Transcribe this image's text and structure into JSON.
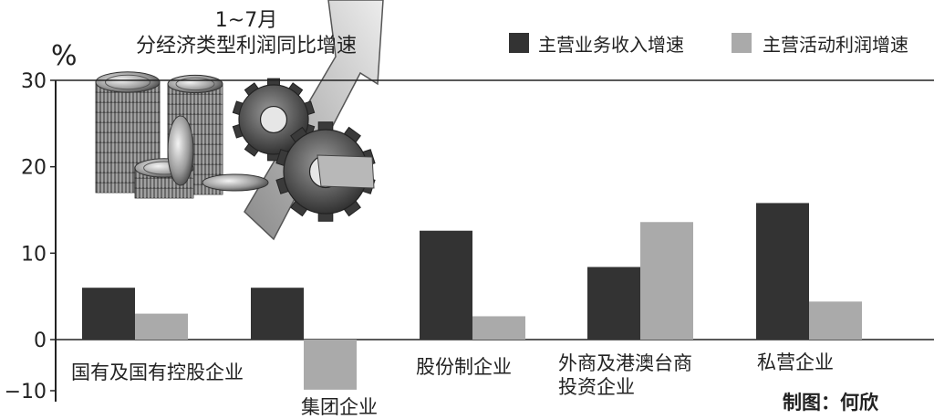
{
  "chart_data": {
    "type": "bar",
    "title": "1~7月",
    "subtitle": "分经济类型利润同比增速",
    "ylabel": "%",
    "ylim": [
      -10,
      30
    ],
    "yticks": [
      -10,
      0,
      10,
      20,
      30
    ],
    "grid": false,
    "legend_position": "top-right",
    "categories": [
      "国有及国有控股企业",
      "集团企业",
      "股份制企业",
      "外商及港澳台商投资企业",
      "私营企业"
    ],
    "category_lines": [
      [
        "国有及国有控股企业"
      ],
      [
        "集团企业"
      ],
      [
        "股份制企业"
      ],
      [
        "外商及港澳台商",
        "投资企业"
      ],
      [
        "私营企业"
      ]
    ],
    "series": [
      {
        "name": "主营业务收入增速",
        "color": "#333333",
        "values": [
          6.0,
          6.0,
          12.6,
          8.4,
          15.8
        ]
      },
      {
        "name": "主营活动利润增速",
        "color": "#aaaaaa",
        "values": [
          3.0,
          -5.8,
          2.7,
          13.6,
          4.4
        ]
      }
    ]
  },
  "credit": "制图：何欣"
}
